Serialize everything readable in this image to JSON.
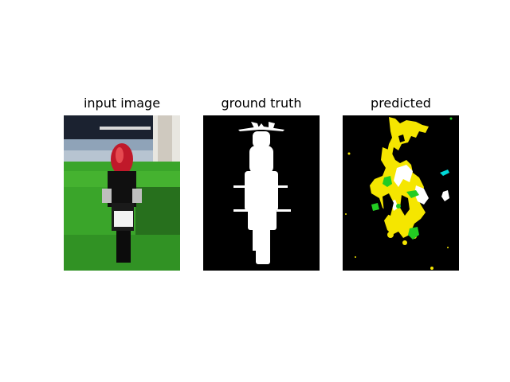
{
  "panels": [
    {
      "title": "input image",
      "kind": "photograph of a red motorcycle on grass"
    },
    {
      "title": "ground truth",
      "kind": "binary segmentation mask"
    },
    {
      "title": "predicted",
      "kind": "predicted segmentation mask"
    }
  ],
  "colors": {
    "background": "#000000",
    "mask": "#ffffff",
    "pred_yellow": "#f5e600",
    "pred_green": "#22cc22",
    "pred_cyan": "#00d8d8",
    "grass": "#3aa52a",
    "bike_red": "#c0192a"
  }
}
